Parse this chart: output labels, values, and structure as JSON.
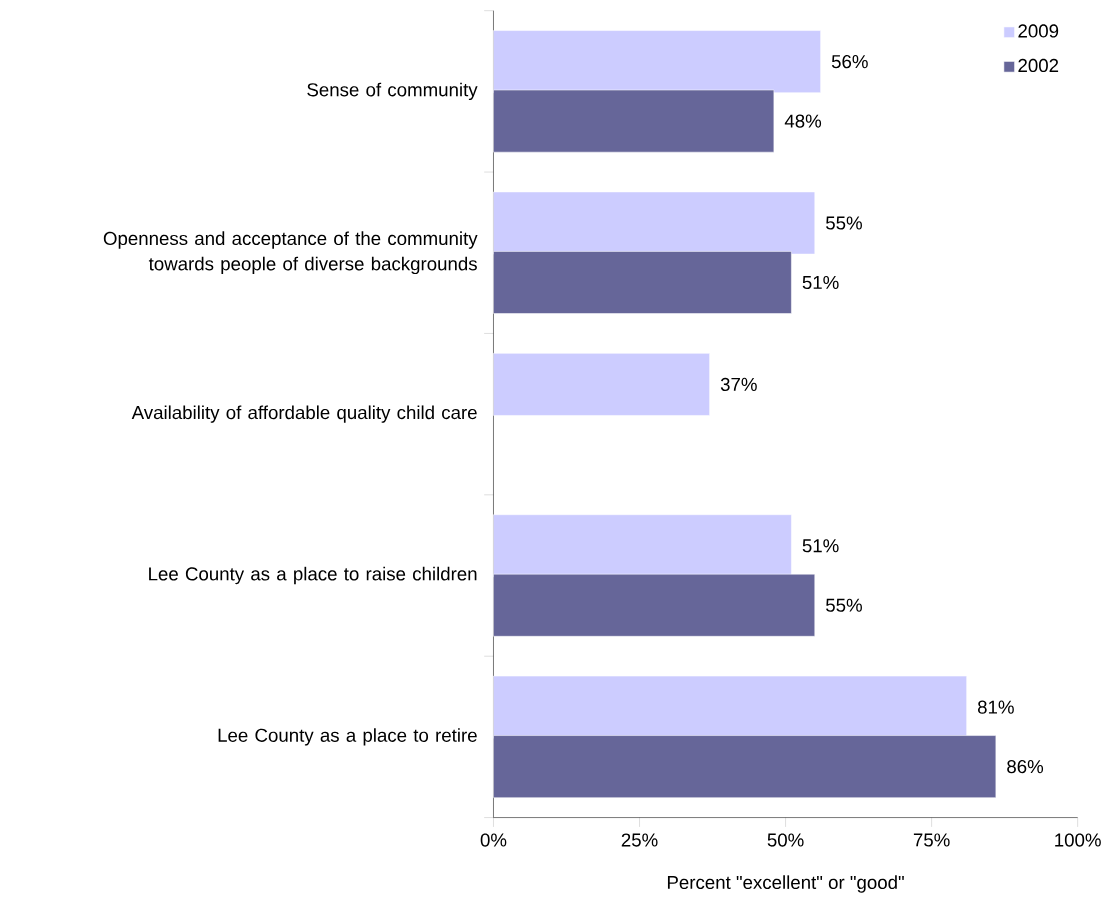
{
  "chart_data": {
    "type": "bar",
    "orientation": "horizontal",
    "xlabel": "Percent \"excellent\" or \"good\"",
    "categories": [
      "Sense of community",
      "Openness and acceptance of the community towards people of diverse backgrounds",
      "Availability of affordable quality child care",
      "Lee County as a place to raise children",
      "Lee County as a place to retire"
    ],
    "series": [
      {
        "name": "2009",
        "color": "#ccccff",
        "values": [
          56,
          55,
          37,
          51,
          81
        ],
        "value_labels": [
          "56%",
          "55%",
          "37%",
          "51%",
          "81%"
        ]
      },
      {
        "name": "2002",
        "color": "#666699",
        "values": [
          48,
          51,
          null,
          55,
          86
        ],
        "value_labels": [
          "48%",
          "51%",
          null,
          "55%",
          "86%"
        ]
      }
    ],
    "xlim": [
      0,
      100
    ],
    "xticks": [
      {
        "value": 0,
        "label": "0%"
      },
      {
        "value": 25,
        "label": "25%"
      },
      {
        "value": 50,
        "label": "50%"
      },
      {
        "value": 75,
        "label": "75%"
      },
      {
        "value": 100,
        "label": "100%"
      }
    ],
    "grid": false,
    "legend": "top right"
  }
}
